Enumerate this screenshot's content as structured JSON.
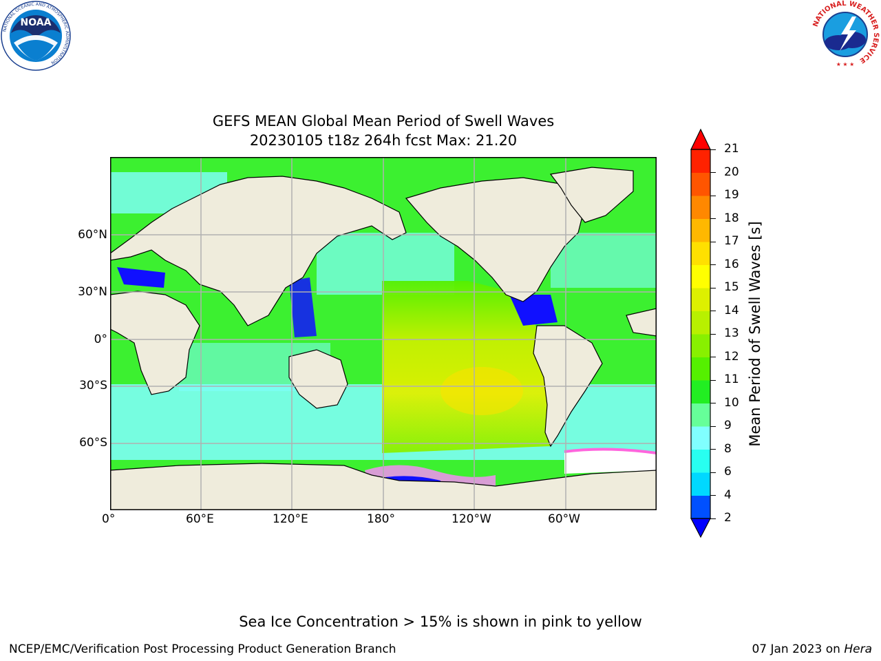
{
  "title": {
    "line1": "GEFS MEAN Global Mean Period of Swell Waves",
    "line2": "20230105 t18z 264h fcst   Max: 21.20"
  },
  "map": {
    "projection": "cylindrical",
    "lat_labels": [
      "60°N",
      "30°N",
      "0°",
      "30°S",
      "60°S"
    ],
    "lon_labels": [
      "0°",
      "60°E",
      "120°E",
      "180°",
      "120°W",
      "60°W"
    ],
    "grid": true,
    "land_color": "#efecdc",
    "ocean_field": "mean swell period"
  },
  "colorbar": {
    "label": "Mean Period of Swell Waves [s]",
    "ticks": [
      "2",
      "4",
      "6",
      "8",
      "9",
      "10",
      "11",
      "12",
      "13",
      "14",
      "15",
      "16",
      "17",
      "18",
      "19",
      "20",
      "21"
    ],
    "levels": [
      2,
      4,
      6,
      8,
      9,
      10,
      11,
      12,
      13,
      14,
      15,
      16,
      17,
      18,
      19,
      20,
      21
    ],
    "colors": [
      "#0050ff",
      "#00d8ff",
      "#28fff0",
      "#80ffff",
      "#66ff99",
      "#22ee22",
      "#55f000",
      "#88f000",
      "#b8f000",
      "#ddf000",
      "#ffff00",
      "#ffe000",
      "#ffb800",
      "#ff8800",
      "#ff5500",
      "#ff2200"
    ],
    "under_color": "#0000ff",
    "over_color": "#ff0000",
    "extend": "both"
  },
  "notes": {
    "sea_ice": "Sea Ice Concentration > 15% is shown in pink to yellow"
  },
  "footer": {
    "left": "NCEP/EMC/Verification Post Processing Product Generation Branch",
    "right_date": "07 Jan 2023 on",
    "right_machine": "Hera"
  },
  "logos": {
    "noaa": {
      "text": "NOAA",
      "ring_text": "NATIONAL OCEANIC AND ATMOSPHERIC ADMINISTRATION",
      "ring_text_bottom": "U.S. DEPARTMENT OF COMMERCE"
    },
    "nws": {
      "ring_text": "NATIONAL WEATHER SERVICE"
    }
  }
}
